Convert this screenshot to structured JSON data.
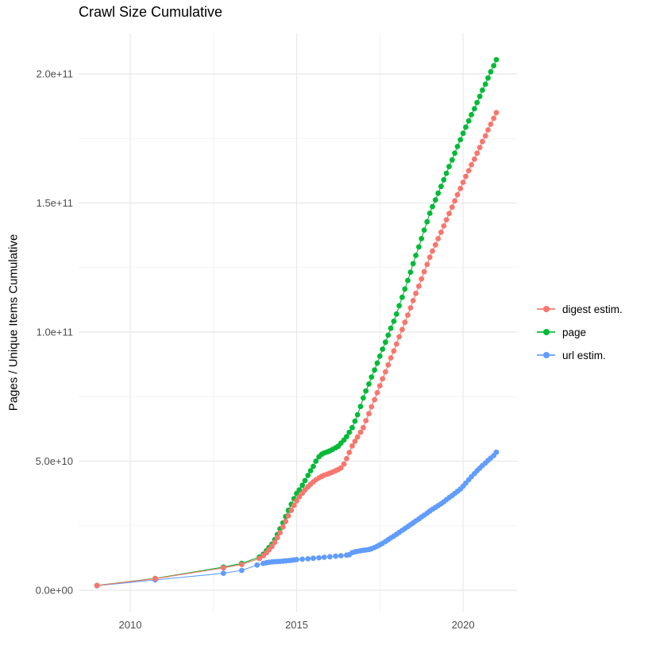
{
  "chart_data": {
    "type": "scatter",
    "title": "Crawl Size Cumulative",
    "xlabel": "",
    "ylabel": "Pages / Unique Items Cumulative",
    "value_unit": "billions (1e9 items)",
    "grid": true,
    "legend_position": "right",
    "xlim": [
      2008.45,
      2021.62
    ],
    "ylim": [
      -8.3,
      215.7
    ],
    "x_ticks": [
      {
        "value": 2010,
        "label": "2010"
      },
      {
        "value": 2015,
        "label": "2015"
      },
      {
        "value": 2020,
        "label": "2020"
      }
    ],
    "y_ticks": [
      {
        "value": 0,
        "label": "0.0e+00"
      },
      {
        "value": 50,
        "label": "5.0e+10"
      },
      {
        "value": 100,
        "label": "1.0e+11"
      },
      {
        "value": 150,
        "label": "1.5e+11"
      },
      {
        "value": 200,
        "label": "2.0e+11"
      }
    ],
    "x_minor": [
      2012.5,
      2017.5
    ],
    "y_minor": [
      25,
      75,
      125,
      175
    ],
    "series": [
      {
        "name": "digest estim.",
        "color": "#F8766D",
        "points": [
          [
            2009.0,
            1.85
          ],
          [
            2010.75,
            4.5
          ],
          [
            2012.8,
            8.7
          ],
          [
            2013.35,
            10.0
          ],
          [
            2013.88,
            12.3
          ],
          [
            2014.0,
            13.4
          ],
          [
            2014.09,
            14.5
          ],
          [
            2014.17,
            15.7
          ],
          [
            2014.26,
            17.0
          ],
          [
            2014.34,
            18.6
          ],
          [
            2014.42,
            20.4
          ],
          [
            2014.5,
            22.3
          ],
          [
            2014.59,
            24.5
          ],
          [
            2014.67,
            26.7
          ],
          [
            2014.75,
            28.8
          ],
          [
            2014.84,
            31.0
          ],
          [
            2014.92,
            32.9
          ],
          [
            2015.0,
            34.7
          ],
          [
            2015.08,
            36.2
          ],
          [
            2015.17,
            37.6
          ],
          [
            2015.25,
            38.9
          ],
          [
            2015.34,
            40.1
          ],
          [
            2015.42,
            41.1
          ],
          [
            2015.5,
            42.0
          ],
          [
            2015.58,
            42.8
          ],
          [
            2015.67,
            43.5
          ],
          [
            2015.75,
            44.1
          ],
          [
            2015.83,
            44.6
          ],
          [
            2015.92,
            45.0
          ],
          [
            2016.0,
            45.4
          ],
          [
            2016.08,
            45.8
          ],
          [
            2016.17,
            46.3
          ],
          [
            2016.25,
            46.8
          ],
          [
            2016.33,
            47.4
          ],
          [
            2016.42,
            48.9
          ],
          [
            2016.5,
            51.0
          ],
          [
            2016.58,
            53.4
          ],
          [
            2016.67,
            55.9
          ],
          [
            2016.75,
            57.7
          ],
          [
            2016.83,
            59.4
          ],
          [
            2016.92,
            61.2
          ],
          [
            2017.0,
            63.0
          ],
          [
            2017.08,
            65.7
          ],
          [
            2017.17,
            68.4
          ],
          [
            2017.25,
            71.1
          ],
          [
            2017.34,
            73.8
          ],
          [
            2017.42,
            76.5
          ],
          [
            2017.5,
            79.2
          ],
          [
            2017.58,
            81.9
          ],
          [
            2017.67,
            84.6
          ],
          [
            2017.75,
            87.3
          ],
          [
            2017.83,
            90.0
          ],
          [
            2017.92,
            92.7
          ],
          [
            2018.0,
            95.4
          ],
          [
            2018.08,
            98.2
          ],
          [
            2018.17,
            101.0
          ],
          [
            2018.25,
            103.8
          ],
          [
            2018.34,
            106.6
          ],
          [
            2018.42,
            109.4
          ],
          [
            2018.5,
            112.2
          ],
          [
            2018.58,
            115.0
          ],
          [
            2018.67,
            117.8
          ],
          [
            2018.75,
            120.6
          ],
          [
            2018.83,
            123.4
          ],
          [
            2018.92,
            126.2
          ],
          [
            2019.0,
            129.0
          ],
          [
            2019.08,
            131.4
          ],
          [
            2019.17,
            133.8
          ],
          [
            2019.25,
            136.2
          ],
          [
            2019.34,
            138.7
          ],
          [
            2019.42,
            141.1
          ],
          [
            2019.5,
            143.5
          ],
          [
            2019.58,
            145.9
          ],
          [
            2019.67,
            148.4
          ],
          [
            2019.75,
            150.8
          ],
          [
            2019.83,
            153.2
          ],
          [
            2019.92,
            155.6
          ],
          [
            2020.0,
            158.0
          ],
          [
            2020.08,
            160.3
          ],
          [
            2020.17,
            162.5
          ],
          [
            2020.25,
            164.8
          ],
          [
            2020.34,
            167.0
          ],
          [
            2020.42,
            169.3
          ],
          [
            2020.5,
            171.5
          ],
          [
            2020.58,
            173.8
          ],
          [
            2020.67,
            176.0
          ],
          [
            2020.75,
            178.3
          ],
          [
            2020.83,
            180.5
          ],
          [
            2020.92,
            182.8
          ],
          [
            2021.0,
            185.0
          ]
        ]
      },
      {
        "name": "page",
        "color": "#00BA38",
        "points": [
          [
            2009.0,
            1.9
          ],
          [
            2010.75,
            4.6
          ],
          [
            2012.8,
            9.0
          ],
          [
            2013.35,
            10.4
          ],
          [
            2013.88,
            12.9
          ],
          [
            2014.0,
            14.0
          ],
          [
            2014.09,
            15.3
          ],
          [
            2014.17,
            16.6
          ],
          [
            2014.26,
            17.9
          ],
          [
            2014.34,
            19.6
          ],
          [
            2014.42,
            21.6
          ],
          [
            2014.5,
            23.8
          ],
          [
            2014.59,
            26.1
          ],
          [
            2014.67,
            28.6
          ],
          [
            2014.75,
            31.0
          ],
          [
            2014.84,
            33.3
          ],
          [
            2014.92,
            35.5
          ],
          [
            2015.0,
            37.5
          ],
          [
            2015.08,
            38.9
          ],
          [
            2015.17,
            40.7
          ],
          [
            2015.25,
            42.5
          ],
          [
            2015.34,
            44.5
          ],
          [
            2015.42,
            46.3
          ],
          [
            2015.5,
            48.0
          ],
          [
            2015.58,
            50.0
          ],
          [
            2015.67,
            51.7
          ],
          [
            2015.75,
            52.7
          ],
          [
            2015.83,
            53.2
          ],
          [
            2015.92,
            53.6
          ],
          [
            2016.0,
            54.0
          ],
          [
            2016.08,
            54.6
          ],
          [
            2016.17,
            55.2
          ],
          [
            2016.25,
            55.8
          ],
          [
            2016.33,
            57.0
          ],
          [
            2016.42,
            58.2
          ],
          [
            2016.5,
            59.5
          ],
          [
            2016.58,
            61.2
          ],
          [
            2016.67,
            63.0
          ],
          [
            2016.75,
            65.5
          ],
          [
            2016.83,
            68.0
          ],
          [
            2016.92,
            71.2
          ],
          [
            2017.0,
            74.5
          ],
          [
            2017.08,
            77.2
          ],
          [
            2017.17,
            79.9
          ],
          [
            2017.25,
            82.6
          ],
          [
            2017.34,
            85.3
          ],
          [
            2017.42,
            88.0
          ],
          [
            2017.5,
            90.7
          ],
          [
            2017.58,
            93.4
          ],
          [
            2017.67,
            96.1
          ],
          [
            2017.75,
            98.8
          ],
          [
            2017.83,
            101.5
          ],
          [
            2017.92,
            104.2
          ],
          [
            2018.0,
            107.0
          ],
          [
            2018.08,
            110.2
          ],
          [
            2018.17,
            113.5
          ],
          [
            2018.25,
            116.7
          ],
          [
            2018.34,
            120.0
          ],
          [
            2018.42,
            123.2
          ],
          [
            2018.5,
            126.5
          ],
          [
            2018.58,
            129.7
          ],
          [
            2018.67,
            133.0
          ],
          [
            2018.75,
            136.2
          ],
          [
            2018.83,
            139.5
          ],
          [
            2018.92,
            142.7
          ],
          [
            2019.0,
            146.0
          ],
          [
            2019.08,
            148.6
          ],
          [
            2019.17,
            151.2
          ],
          [
            2019.25,
            153.8
          ],
          [
            2019.34,
            156.4
          ],
          [
            2019.42,
            159.0
          ],
          [
            2019.5,
            161.5
          ],
          [
            2019.58,
            164.1
          ],
          [
            2019.67,
            166.7
          ],
          [
            2019.75,
            169.3
          ],
          [
            2019.83,
            171.9
          ],
          [
            2019.92,
            174.5
          ],
          [
            2020.0,
            177.0
          ],
          [
            2020.08,
            179.4
          ],
          [
            2020.17,
            181.8
          ],
          [
            2020.25,
            184.2
          ],
          [
            2020.34,
            186.5
          ],
          [
            2020.42,
            188.9
          ],
          [
            2020.5,
            191.3
          ],
          [
            2020.58,
            193.7
          ],
          [
            2020.67,
            196.0
          ],
          [
            2020.75,
            198.4
          ],
          [
            2020.83,
            200.8
          ],
          [
            2020.92,
            203.2
          ],
          [
            2021.0,
            205.5
          ]
        ]
      },
      {
        "name": "url estim.",
        "color": "#619CFF",
        "points": [
          [
            2009.0,
            1.75
          ],
          [
            2010.75,
            4.0
          ],
          [
            2012.8,
            6.6
          ],
          [
            2013.35,
            7.7
          ],
          [
            2013.81,
            9.8
          ],
          [
            2014.0,
            10.4
          ],
          [
            2014.09,
            10.7
          ],
          [
            2014.17,
            10.85
          ],
          [
            2014.26,
            11.0
          ],
          [
            2014.34,
            11.1
          ],
          [
            2014.42,
            11.15
          ],
          [
            2014.5,
            11.2
          ],
          [
            2014.59,
            11.3
          ],
          [
            2014.67,
            11.4
          ],
          [
            2014.75,
            11.5
          ],
          [
            2014.84,
            11.6
          ],
          [
            2014.92,
            11.75
          ],
          [
            2015.0,
            11.9
          ],
          [
            2015.17,
            12.05
          ],
          [
            2015.34,
            12.2
          ],
          [
            2015.5,
            12.4
          ],
          [
            2015.67,
            12.6
          ],
          [
            2015.83,
            12.8
          ],
          [
            2016.0,
            13.0
          ],
          [
            2016.17,
            13.2
          ],
          [
            2016.33,
            13.4
          ],
          [
            2016.5,
            13.6
          ],
          [
            2016.58,
            13.8
          ],
          [
            2016.67,
            14.6
          ],
          [
            2016.75,
            14.9
          ],
          [
            2016.83,
            15.1
          ],
          [
            2016.92,
            15.3
          ],
          [
            2017.0,
            15.5
          ],
          [
            2017.08,
            15.6
          ],
          [
            2017.17,
            15.8
          ],
          [
            2017.25,
            16.1
          ],
          [
            2017.34,
            16.6
          ],
          [
            2017.42,
            17.1
          ],
          [
            2017.5,
            17.6
          ],
          [
            2017.58,
            18.2
          ],
          [
            2017.67,
            18.9
          ],
          [
            2017.75,
            19.6
          ],
          [
            2017.83,
            20.3
          ],
          [
            2017.92,
            21.0
          ],
          [
            2018.0,
            21.7
          ],
          [
            2018.08,
            22.4
          ],
          [
            2018.17,
            23.2
          ],
          [
            2018.25,
            23.9
          ],
          [
            2018.34,
            24.7
          ],
          [
            2018.42,
            25.4
          ],
          [
            2018.5,
            26.1
          ],
          [
            2018.58,
            26.9
          ],
          [
            2018.67,
            27.6
          ],
          [
            2018.75,
            28.4
          ],
          [
            2018.83,
            29.1
          ],
          [
            2018.92,
            29.9
          ],
          [
            2019.0,
            30.7
          ],
          [
            2019.08,
            31.4
          ],
          [
            2019.17,
            32.1
          ],
          [
            2019.25,
            32.8
          ],
          [
            2019.34,
            33.5
          ],
          [
            2019.42,
            34.3
          ],
          [
            2019.5,
            35.1
          ],
          [
            2019.58,
            35.9
          ],
          [
            2019.67,
            36.7
          ],
          [
            2019.75,
            37.5
          ],
          [
            2019.83,
            38.3
          ],
          [
            2019.92,
            39.2
          ],
          [
            2020.0,
            40.3
          ],
          [
            2020.08,
            41.5
          ],
          [
            2020.17,
            42.8
          ],
          [
            2020.25,
            44.0
          ],
          [
            2020.34,
            45.2
          ],
          [
            2020.42,
            46.3
          ],
          [
            2020.5,
            47.3
          ],
          [
            2020.58,
            48.3
          ],
          [
            2020.67,
            49.3
          ],
          [
            2020.75,
            50.3
          ],
          [
            2020.83,
            51.2
          ],
          [
            2020.92,
            52.2
          ],
          [
            2021.0,
            53.5
          ]
        ]
      }
    ]
  }
}
